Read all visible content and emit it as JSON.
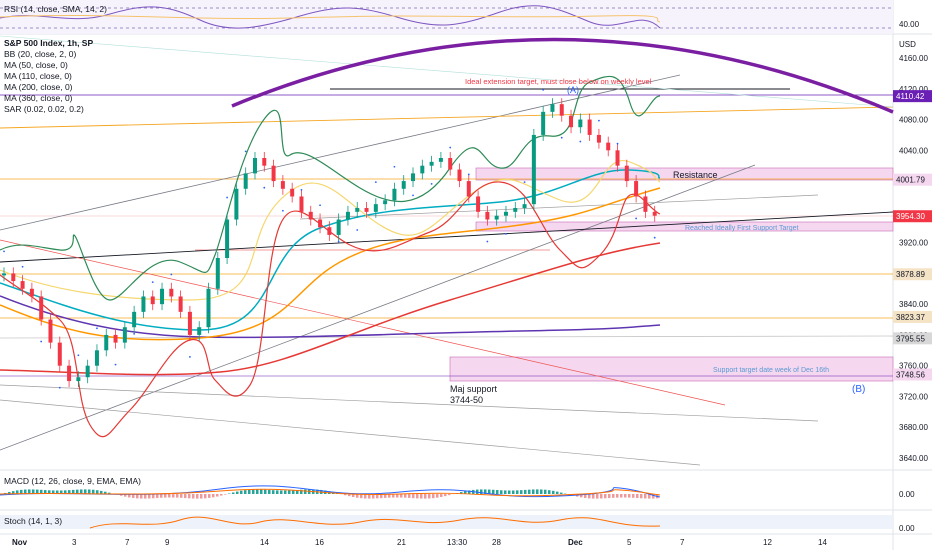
{
  "chart_data": {
    "type": "line",
    "title": "S&P 500 Index, 1h, SP",
    "currency": "USD",
    "yaxis_ticks": [
      "4160.00",
      "4120.00",
      "4080.00",
      "4040.00",
      "3920.00",
      "3880.00",
      "3840.00",
      "3800.00",
      "3760.00",
      "3720.00",
      "3680.00",
      "3640.00"
    ],
    "xaxis_ticks": [
      "Nov",
      "3",
      "7",
      "9",
      "14",
      "16",
      "21",
      "13:30",
      "28",
      "Dec",
      "5",
      "7",
      "12",
      "14"
    ],
    "price_labels": [
      {
        "value": "4110.42",
        "color": "#6a1fb5"
      },
      {
        "value": "4001.79",
        "color": "#f5d7ef"
      },
      {
        "value": "3954.30",
        "color": "#f23645"
      },
      {
        "value": "3878.89",
        "color": "#f5e3c6"
      },
      {
        "value": "3823.37",
        "color": "#f5e3c6"
      },
      {
        "value": "3795.55",
        "color": "#d8d8d8"
      },
      {
        "value": "3748.56",
        "color": "#f5d7ef"
      }
    ],
    "indicators": [
      "BB (20, close, 2, 0)",
      "MA (50, close, 0)",
      "MA (110, close, 0)",
      "MA (200, close, 0)",
      "MA (360, close, 0)",
      "SAR (0.02, 0.02, 0.2)"
    ],
    "annotations": {
      "extension": "Ideal extension target, must close below on weekly level",
      "resistance": "Resistance",
      "first_support": "Reached Ideally First Support Target",
      "support_week": "Support target date week of Dec 16th",
      "maj_support_1": "Maj support",
      "maj_support_2": "3744-50",
      "wave_a": "(A)",
      "wave_b": "(B)"
    },
    "rsi": {
      "label": "RSI (14, close, SMA, 14, 2)",
      "tick": "40.00"
    },
    "macd": {
      "label": "MACD (12, 26, close, 9, EMA, EMA)",
      "tick": "0.00"
    },
    "stoch": {
      "label": "Stoch (14, 1, 3)",
      "tick": "0.00"
    },
    "colors": {
      "up": "#089981",
      "down": "#f23645",
      "bb": "#2e8b57",
      "ma50": "#f5d76e",
      "ma110": "#00acc1",
      "ma200": "#ff9800",
      "ma360": "#5e35b1",
      "red_ma": "#e53935",
      "arc": "#7b1fa2"
    }
  }
}
